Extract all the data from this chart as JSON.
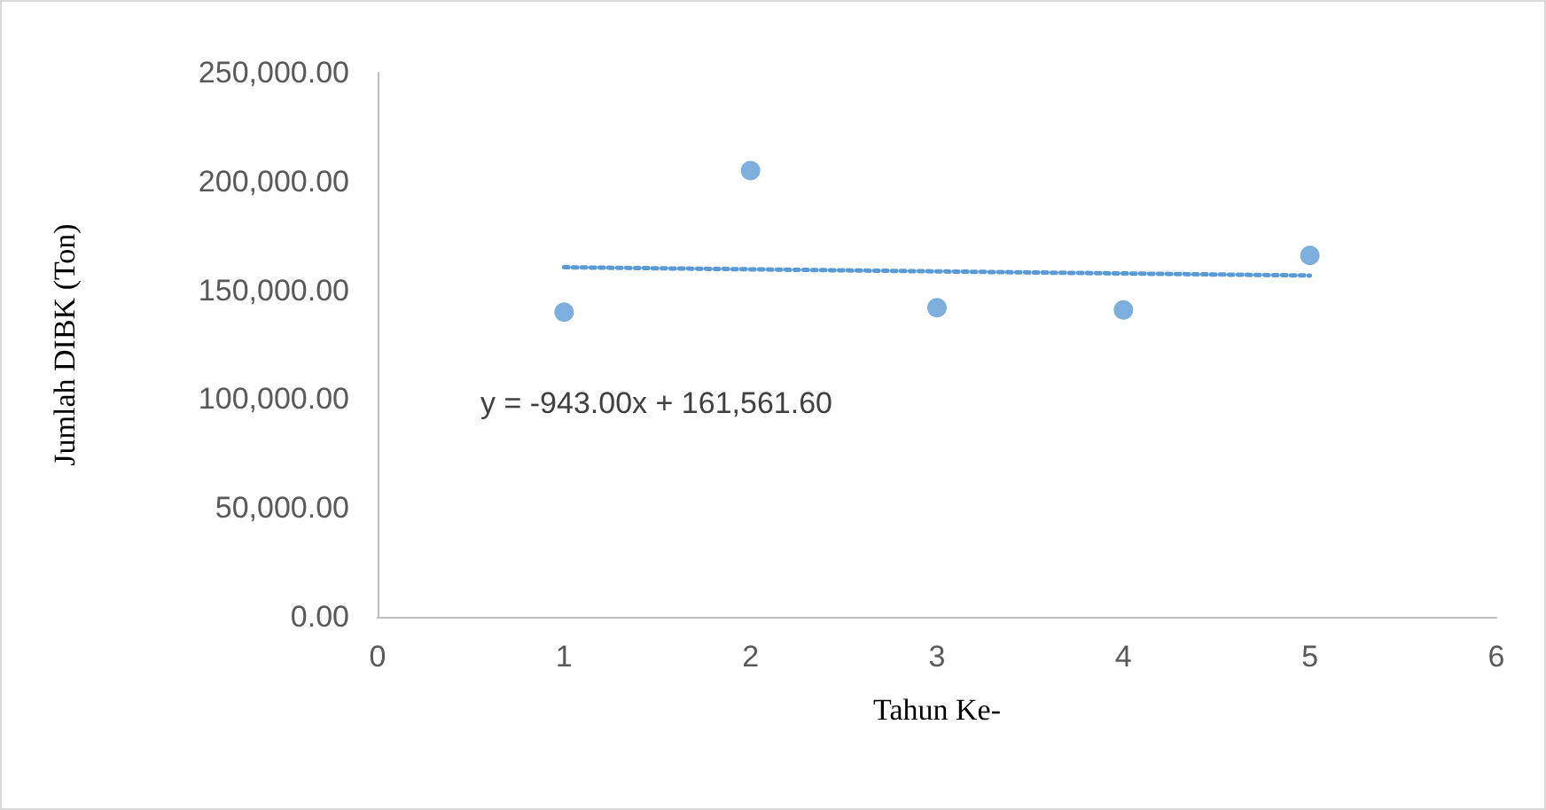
{
  "chart_data": {
    "type": "scatter",
    "xlabel": "Tahun Ke-",
    "ylabel": "Jumlah DIBK (Ton)",
    "x": [
      1,
      2,
      3,
      4,
      5
    ],
    "series": [
      {
        "color": "#5b9bd5",
        "values": [
          140000,
          205000,
          142000,
          141000,
          166000
        ]
      },
      {
        "type": "line",
        "color": "#5b9bd5",
        "x": [
          1,
          5
        ],
        "values": [
          160600,
          156800
        ],
        "line_style": "dotted",
        "marker": "none"
      }
    ],
    "annotations": [
      "y = -943.00x + 161,561.60"
    ],
    "xlim": [
      0,
      6
    ],
    "xticks": [
      0,
      1,
      2,
      3,
      4,
      5,
      6
    ],
    "ylim": [
      0,
      250000
    ],
    "yticks": [
      {
        "value": 0,
        "label": "0.00"
      },
      {
        "value": 50000,
        "label": "50,000.00"
      },
      {
        "value": 100000,
        "label": "100,000.00"
      },
      {
        "value": 150000,
        "label": "150,000.00"
      },
      {
        "value": 200000,
        "label": "200,000.00"
      },
      {
        "value": 250000,
        "label": "250,000.00"
      }
    ],
    "grid": false,
    "marker": "circle"
  }
}
